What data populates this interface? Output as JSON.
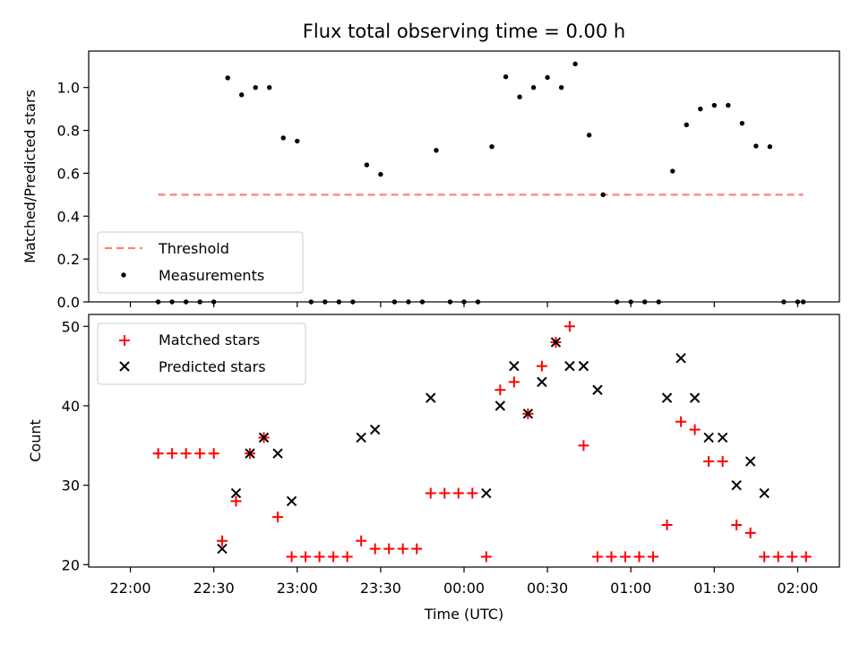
{
  "chart_data": [
    {
      "type": "scatter",
      "title": "Flux total observing time = 0.00 h",
      "ylabel": "Matched/Predicted stars",
      "ylim": [
        0.0,
        1.17
      ],
      "yticks": [
        "0.0",
        "0.2",
        "0.4",
        "0.6",
        "0.8",
        "1.0"
      ],
      "ytick_values": [
        0.0,
        0.2,
        0.4,
        0.6,
        0.8,
        1.0
      ],
      "legend_position": "lower-left",
      "threshold": {
        "name": "Threshold",
        "value": 0.5,
        "color": "#ff7f7f",
        "x_start": "22:10",
        "x_end": "02:02"
      },
      "series": [
        {
          "name": "Measurements",
          "color": "#000000",
          "marker": "dot",
          "x": [
            "22:10",
            "22:15",
            "22:20",
            "22:25",
            "22:30",
            "22:35",
            "22:40",
            "22:45",
            "22:50",
            "22:55",
            "23:00",
            "23:05",
            "23:10",
            "23:15",
            "23:20",
            "23:25",
            "23:30",
            "23:35",
            "23:40",
            "23:45",
            "23:50",
            "23:55",
            "24:00",
            "24:05",
            "24:10",
            "24:15",
            "24:20",
            "24:25",
            "24:30",
            "24:35",
            "24:40",
            "24:45",
            "24:50",
            "24:55",
            "25:00",
            "25:05",
            "25:10",
            "25:15",
            "25:20",
            "25:25",
            "25:30",
            "25:35",
            "25:40",
            "25:45",
            "25:50",
            "25:55",
            "26:00",
            "26:02"
          ],
          "y": [
            0,
            0,
            0,
            0,
            0,
            1.045,
            0.966,
            1.0,
            1.0,
            0.765,
            0.75,
            0,
            0,
            0,
            0,
            0.639,
            0.595,
            0,
            0,
            0,
            0.707,
            0,
            0,
            0,
            0.724,
            1.05,
            0.956,
            1.0,
            1.047,
            1.0,
            1.11,
            0.778,
            0.5,
            0,
            0,
            0,
            0,
            0.61,
            0.826,
            0.9,
            0.917,
            0.917,
            0.833,
            0.727,
            0.724,
            0,
            0,
            0
          ]
        }
      ]
    },
    {
      "type": "scatter",
      "xlabel": "Time (UTC)",
      "ylabel": "Count",
      "ylim": [
        19.7,
        51.5
      ],
      "yticks": [
        "20",
        "30",
        "40",
        "50"
      ],
      "ytick_values": [
        20,
        30,
        40,
        50
      ],
      "x_axis": {
        "type": "time",
        "range": [
          "21:45",
          "02:15"
        ]
      },
      "xticks": [
        "22:00",
        "22:30",
        "23:00",
        "23:30",
        "00:00",
        "00:30",
        "01:00",
        "01:30",
        "02:00"
      ],
      "xtick_values": [
        "22:00",
        "22:30",
        "23:00",
        "23:30",
        "24:00",
        "24:30",
        "25:00",
        "25:30",
        "26:00"
      ],
      "legend_position": "upper-left",
      "series": [
        {
          "name": "Matched stars",
          "color": "#ff0000",
          "marker": "plus",
          "x": [
            "22:10",
            "22:15",
            "22:20",
            "22:25",
            "22:30",
            "22:33",
            "22:38",
            "22:43",
            "22:48",
            "22:53",
            "22:58",
            "23:03",
            "23:08",
            "23:13",
            "23:18",
            "23:23",
            "23:28",
            "23:33",
            "23:38",
            "23:43",
            "23:48",
            "23:53",
            "23:58",
            "24:03",
            "24:08",
            "24:13",
            "24:18",
            "24:23",
            "24:28",
            "24:33",
            "24:38",
            "24:43",
            "24:48",
            "24:53",
            "24:58",
            "25:03",
            "25:08",
            "25:13",
            "25:18",
            "25:23",
            "25:28",
            "25:33",
            "25:38",
            "25:43",
            "25:48",
            "25:53",
            "25:58",
            "26:03"
          ],
          "y": [
            34,
            34,
            34,
            34,
            34,
            23,
            28,
            34,
            36,
            26,
            21,
            21,
            21,
            21,
            21,
            23,
            22,
            22,
            22,
            22,
            29,
            29,
            29,
            29,
            21,
            42,
            43,
            39,
            45,
            48,
            50,
            35,
            21,
            21,
            21,
            21,
            21,
            25,
            38,
            37,
            33,
            33,
            25,
            24,
            21,
            21,
            21,
            21
          ]
        },
        {
          "name": "Predicted stars",
          "color": "#000000",
          "marker": "x",
          "x": [
            "22:33",
            "22:38",
            "22:43",
            "22:48",
            "22:53",
            "22:58",
            "23:23",
            "23:28",
            "23:48",
            "24:08",
            "24:13",
            "24:18",
            "24:23",
            "24:28",
            "24:33",
            "24:38",
            "24:43",
            "24:48",
            "25:13",
            "25:18",
            "25:23",
            "25:28",
            "25:33",
            "25:38",
            "25:43",
            "25:48"
          ],
          "y": [
            22,
            29,
            34,
            36,
            34,
            28,
            36,
            37,
            41,
            29,
            40,
            45,
            39,
            43,
            48,
            45,
            45,
            42,
            41,
            46,
            41,
            36,
            36,
            30,
            33,
            29
          ]
        }
      ]
    }
  ]
}
